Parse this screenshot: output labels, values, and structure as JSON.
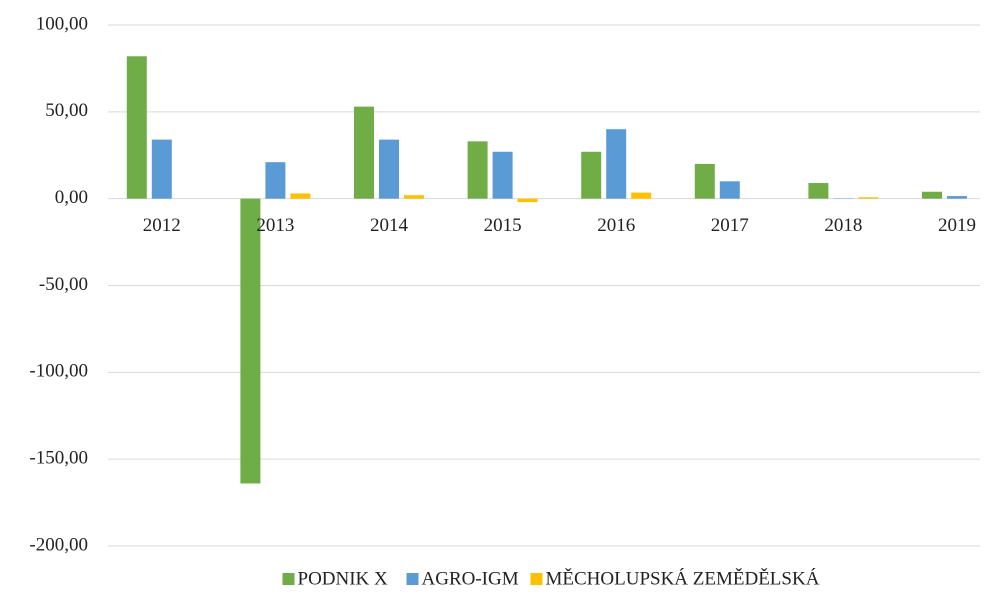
{
  "chart_data": {
    "type": "bar",
    "categories": [
      "2012",
      "2013",
      "2014",
      "2015",
      "2016",
      "2017",
      "2018",
      "2019"
    ],
    "series": [
      {
        "name": "PODNIK X",
        "color": "#70ad47",
        "values": [
          82,
          -164,
          53,
          33,
          27,
          20,
          9,
          4
        ]
      },
      {
        "name": "AGRO-IGM",
        "color": "#5b9bd5",
        "values": [
          34,
          21,
          34,
          27,
          40,
          10,
          0.2,
          1.5
        ]
      },
      {
        "name": "MĚCHOLUPSKÁ ZEMĚDĚLSKÁ",
        "color": "#ffc000",
        "values": [
          0,
          3,
          2,
          -2,
          3.5,
          0,
          0.8,
          0
        ]
      }
    ],
    "ylim": [
      -200,
      100
    ],
    "yticks": [
      {
        "value": -200,
        "label": "-200,00"
      },
      {
        "value": -150,
        "label": "-150,00"
      },
      {
        "value": -100,
        "label": "-100,00"
      },
      {
        "value": -50,
        "label": "-50,00"
      },
      {
        "value": 0,
        "label": "0,00"
      },
      {
        "value": 50,
        "label": "50,00"
      },
      {
        "value": 100,
        "label": "100,00"
      }
    ],
    "grid": true,
    "legend": "bottom"
  }
}
